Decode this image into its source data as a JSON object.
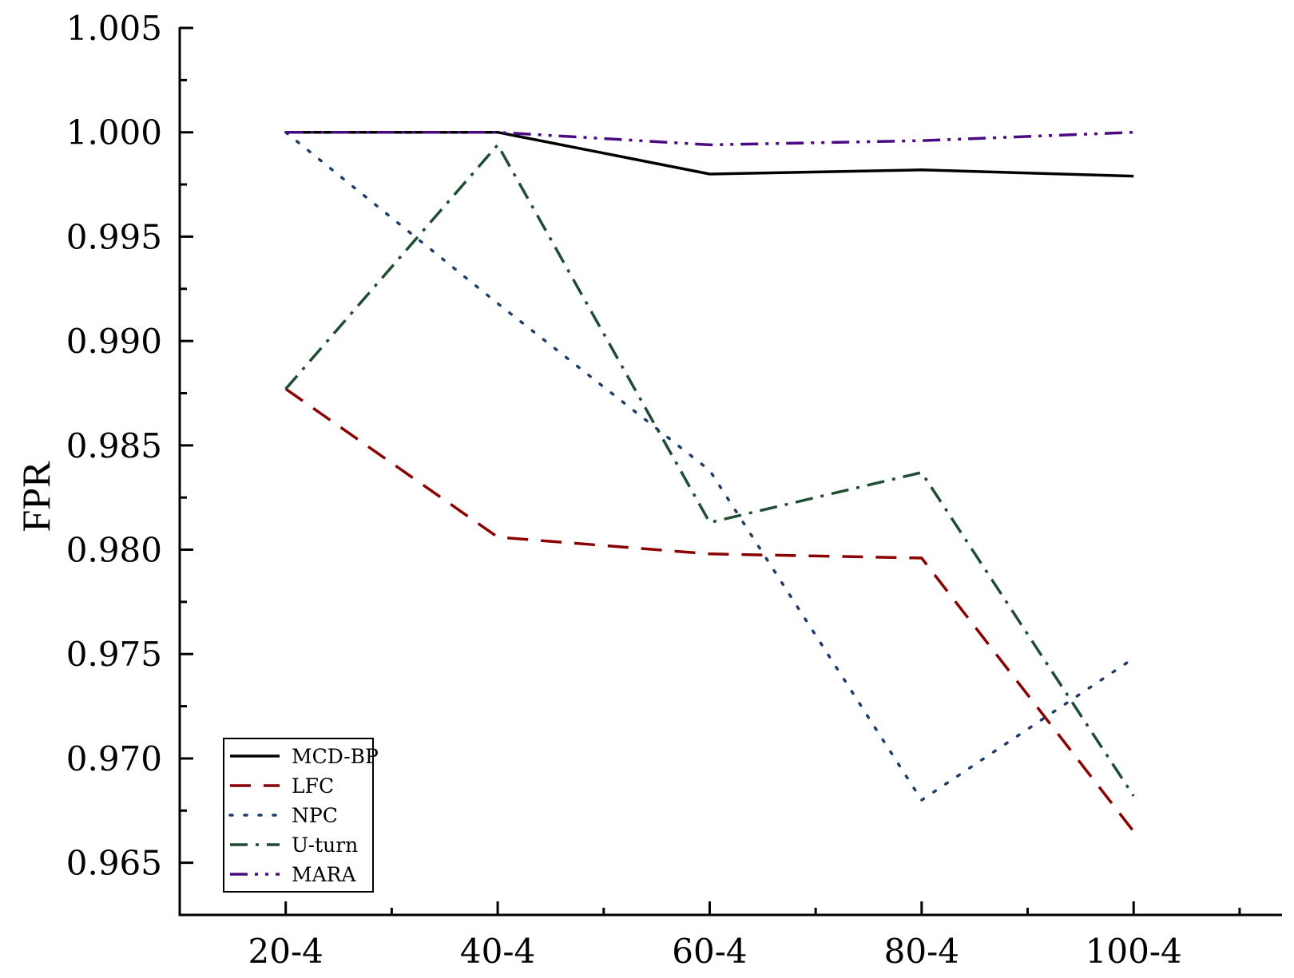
{
  "chart_data": {
    "type": "line",
    "title": "",
    "xlabel": "",
    "ylabel": "FPR",
    "categories": [
      "20-4",
      "40-4",
      "60-4",
      "80-4",
      "100-4"
    ],
    "ylim": [
      0.9625,
      1.005
    ],
    "yticks": [
      "0.965",
      "0.970",
      "0.975",
      "0.980",
      "0.985",
      "0.990",
      "0.995",
      "1.000",
      "1.005"
    ],
    "ytick_values": [
      0.965,
      0.97,
      0.975,
      0.98,
      0.985,
      0.99,
      0.995,
      1.0,
      1.005
    ],
    "grid": false,
    "legend_position": "bottom-left",
    "series": [
      {
        "name": "MCD-BP",
        "values": [
          1.0,
          1.0,
          0.998,
          0.9982,
          0.9979
        ],
        "color": "#000000",
        "dash": "solid"
      },
      {
        "name": "LFC",
        "values": [
          0.9877,
          0.9806,
          0.9798,
          0.9796,
          0.9665
        ],
        "color": "#8b0000",
        "dash": "dashed"
      },
      {
        "name": "NPC",
        "values": [
          1.0,
          0.9918,
          0.9838,
          0.968,
          0.9748
        ],
        "color": "#1f3d6b",
        "dash": "dotted"
      },
      {
        "name": "U-turn",
        "values": [
          0.9877,
          0.9994,
          0.9813,
          0.9837,
          0.9682
        ],
        "color": "#1e4d32",
        "dash": "dash-dot"
      },
      {
        "name": "MARA",
        "values": [
          1.0,
          1.0,
          0.9994,
          0.9996,
          1.0
        ],
        "color": "#4b0a82",
        "dash": "dash-dot-dot"
      }
    ]
  }
}
